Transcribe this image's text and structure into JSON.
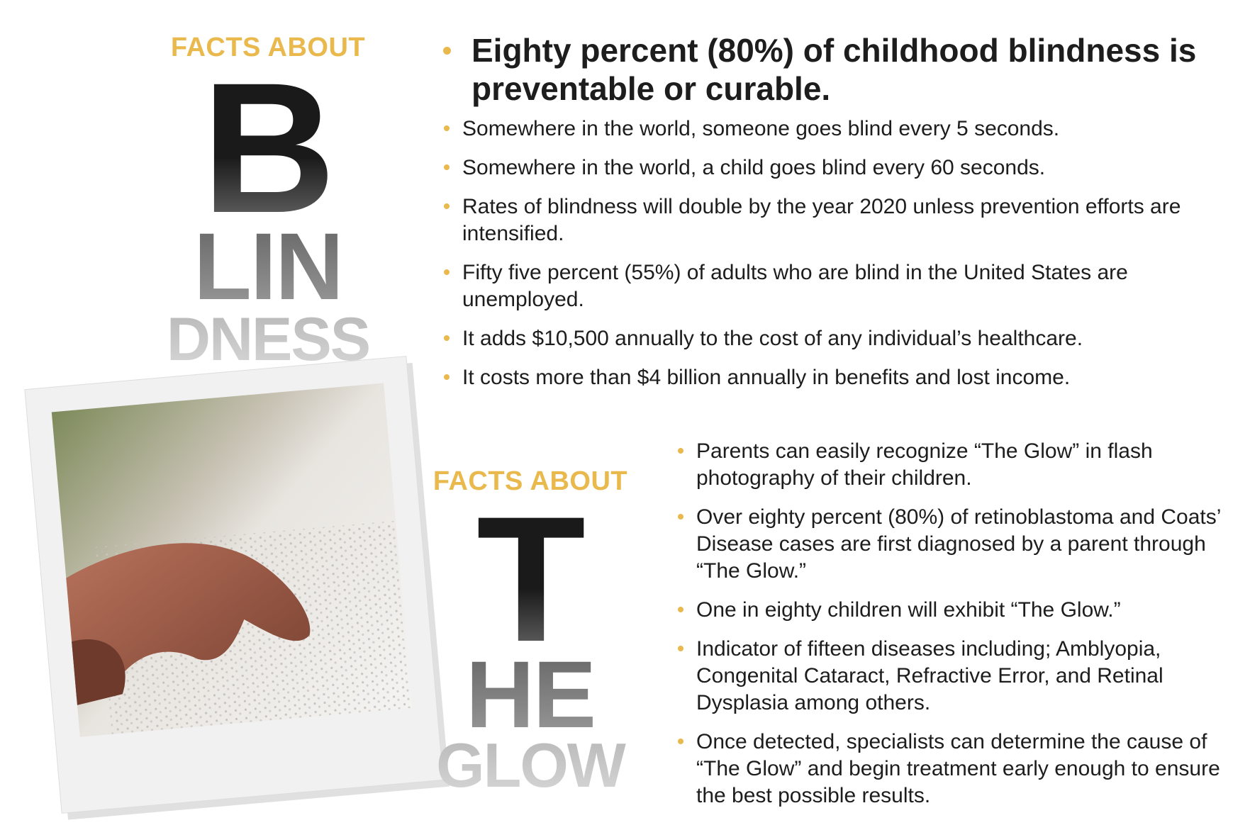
{
  "blindness": {
    "kicker": "FACTS ABOUT",
    "letters": [
      "B",
      "LIN",
      "DNESS"
    ],
    "headline": "Eighty percent (80%) of childhood blindness is preventable or curable.",
    "facts": [
      "Somewhere in the world, someone goes blind every 5 seconds.",
      "Somewhere in the world, a child goes blind every 60 seconds.",
      "Rates of blindness will double by the year 2020 unless prevention efforts are intensified.",
      "Fifty five percent (55%) of adults who are blind in the United States are unemployed.",
      "It adds $10,500 annually to the cost of any individual’s healthcare.",
      "It costs more than $4 billion annually in benefits and lost income."
    ]
  },
  "glow": {
    "kicker": "FACTS ABOUT",
    "letters": [
      "T",
      "HE",
      "GLOW"
    ],
    "facts": [
      "Parents can easily recognize “The Glow” in flash photography of their children.",
      "Over eighty percent (80%) of retinoblastoma and Coats’ Disease cases are first diagnosed by a parent through “The Glow.”",
      "One in eighty children will exhibit “The Glow.”",
      "Indicator of fifteen diseases including; Amblyopia, Congenital Cataract, Refractive Error, and Retinal Dysplasia among others.",
      "Once detected, specialists can determine the cause of “The Glow” and begin treatment early enough to ensure the best possible results."
    ]
  }
}
